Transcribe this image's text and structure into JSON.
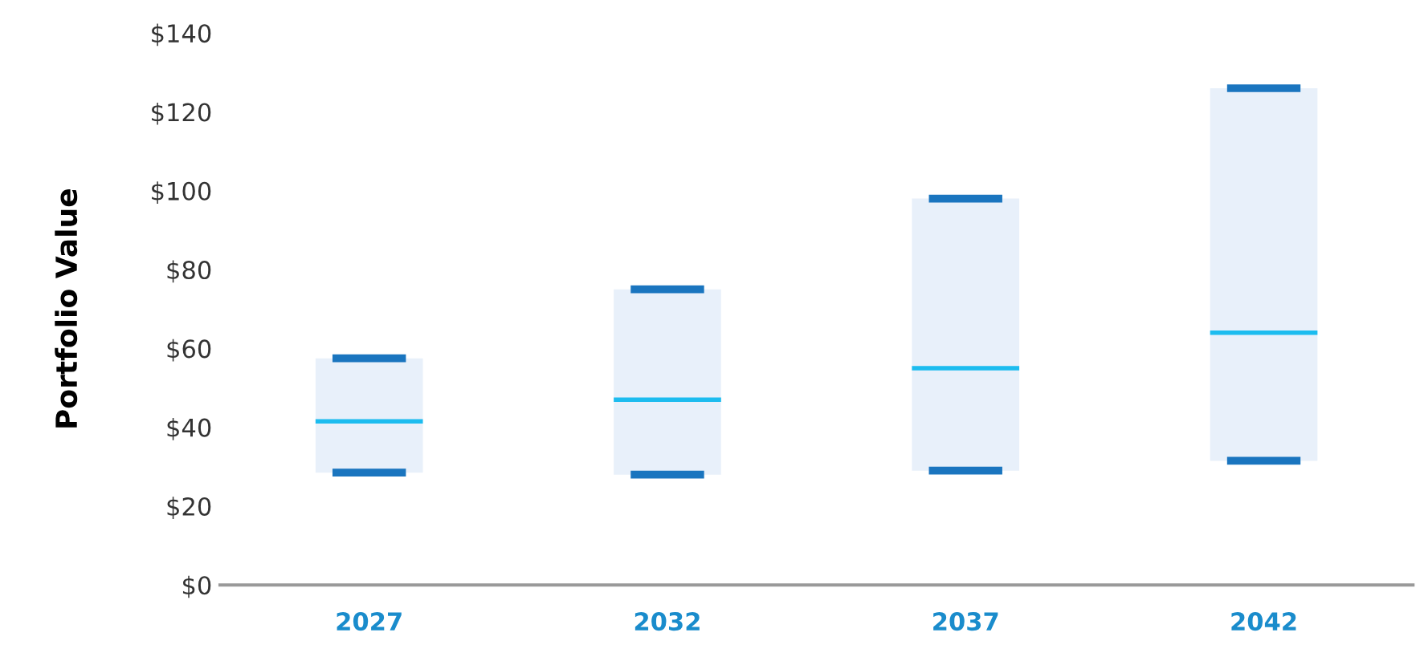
{
  "chart_data": {
    "type": "box",
    "ylabel": "Portfolio Value",
    "categories": [
      "2027",
      "2032",
      "2037",
      "2042"
    ],
    "boxes": [
      {
        "low": 28.5,
        "q1": 28.5,
        "median": 41.5,
        "q3": 57.5,
        "high": 57.5
      },
      {
        "low": 28,
        "q1": 28,
        "median": 47,
        "q3": 75,
        "high": 75
      },
      {
        "low": 29,
        "q1": 29,
        "median": 55,
        "q3": 98,
        "high": 98
      },
      {
        "low": 31.5,
        "q1": 31.5,
        "median": 64,
        "q3": 126,
        "high": 126
      }
    ],
    "color": "#e8f0fa",
    "ylim": [
      0,
      140
    ],
    "yticks": [
      {
        "value": 0,
        "label": "$0"
      },
      {
        "value": 20,
        "label": "$20"
      },
      {
        "value": 40,
        "label": "$40"
      },
      {
        "value": 60,
        "label": "$60"
      },
      {
        "value": 80,
        "label": "$80"
      },
      {
        "value": 100,
        "label": "$100"
      },
      {
        "value": 120,
        "label": "$120"
      },
      {
        "value": 140,
        "label": "$140"
      }
    ]
  }
}
